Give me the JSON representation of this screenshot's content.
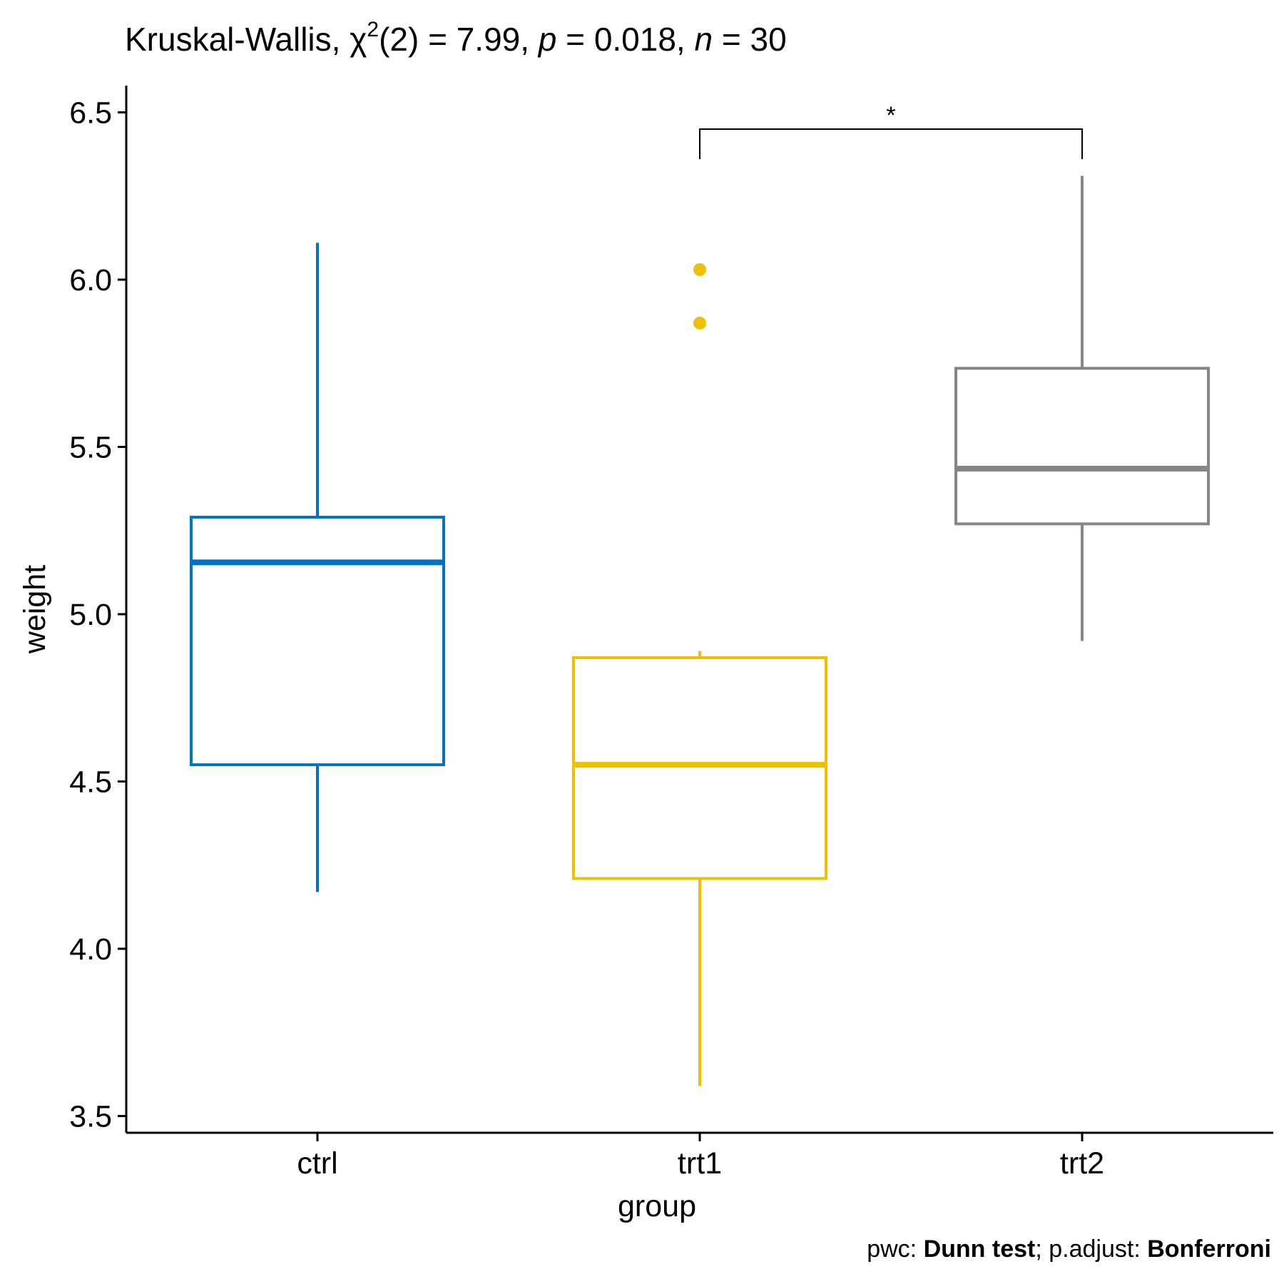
{
  "title": {
    "prefix": "Kruskal-Wallis, χ",
    "sup": "2",
    "df_part": "(2) = 7.99, ",
    "p_sym": "p",
    "p_part": " = 0.018, ",
    "n_sym": "n",
    "n_part": " = 30"
  },
  "caption": {
    "pwc_label": "pwc: ",
    "pwc_value": "Dunn test",
    "sep": "; p.adjust: ",
    "adjust_value": "Bonferroni"
  },
  "chart_data": {
    "type": "box",
    "xlabel": "group",
    "ylabel": "weight",
    "ylim": [
      3.45,
      6.58
    ],
    "yticks": [
      3.5,
      4.0,
      4.5,
      5.0,
      5.5,
      6.0,
      6.5
    ],
    "ytick_labels": [
      "3.5",
      "4.0",
      "4.5",
      "5.0",
      "5.5",
      "6.0",
      "6.5"
    ],
    "categories": [
      "ctrl",
      "trt1",
      "trt2"
    ],
    "colors": [
      "#0073C2",
      "#EFC000",
      "#868686"
    ],
    "boxes": [
      {
        "group": "ctrl",
        "whisker_low": 4.17,
        "q1": 4.55,
        "median": 5.155,
        "q3": 5.29,
        "whisker_high": 6.11,
        "outliers": []
      },
      {
        "group": "trt1",
        "whisker_low": 3.59,
        "q1": 4.21,
        "median": 4.55,
        "q3": 4.87,
        "whisker_high": 4.89,
        "outliers": [
          5.87,
          6.03
        ]
      },
      {
        "group": "trt2",
        "whisker_low": 4.92,
        "q1": 5.27,
        "median": 5.435,
        "q3": 5.735,
        "whisker_high": 6.31,
        "outliers": []
      }
    ],
    "significance": [
      {
        "group1": "trt1",
        "group2": "trt2",
        "label": "*",
        "y": 6.45,
        "tip_bottom": 6.36
      }
    ]
  }
}
